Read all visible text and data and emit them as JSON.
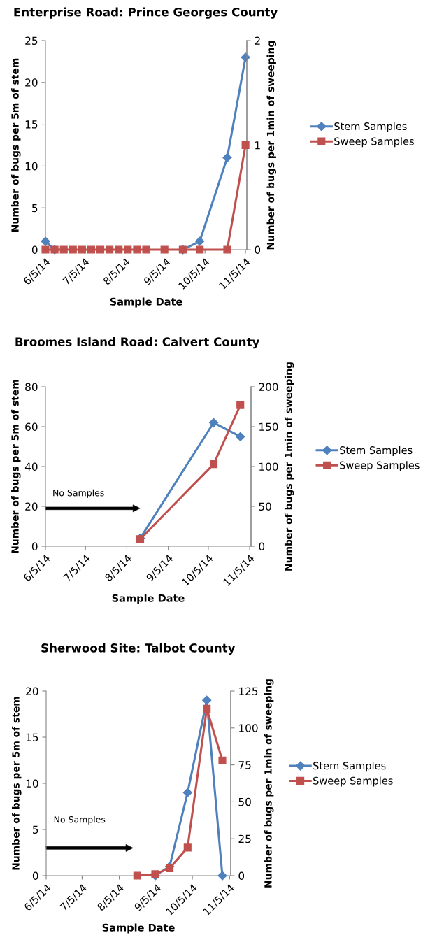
{
  "chart_data": [
    {
      "type": "line",
      "title": "Enterprise Road: Prince Georges County",
      "xlabel": "Sample Date",
      "ylabel": "Number of bugs per 5m of stem",
      "y2label": "Number of bugs per 1min of sweeping",
      "xlim": [
        "2014-06-05",
        "2014-11-06"
      ],
      "xticks": [
        {
          "value": "2014-06-05",
          "label": "6/5/14"
        },
        {
          "value": "2014-07-05",
          "label": "7/5/14"
        },
        {
          "value": "2014-08-05",
          "label": "8/5/14"
        },
        {
          "value": "2014-09-05",
          "label": "9/5/14"
        },
        {
          "value": "2014-10-05",
          "label": "10/5/14"
        },
        {
          "value": "2014-11-05",
          "label": "11/5/14"
        }
      ],
      "ylim": [
        0,
        25
      ],
      "yticks": [
        0,
        5,
        10,
        15,
        20,
        25
      ],
      "y2lim": [
        0,
        2
      ],
      "y2ticks": [
        0,
        1,
        2
      ],
      "grid": false,
      "legend": "right",
      "series": [
        {
          "name": "Stem Samples",
          "color": "#4f81bd",
          "marker": "diamond",
          "x": [
            "2014-06-05",
            "2014-06-12",
            "2014-06-19",
            "2014-06-26",
            "2014-07-03",
            "2014-07-10",
            "2014-07-17",
            "2014-07-24",
            "2014-07-31",
            "2014-08-07",
            "2014-08-14",
            "2014-08-21",
            "2014-09-04",
            "2014-09-18",
            "2014-10-01",
            "2014-10-22",
            "2014-11-05"
          ],
          "values": [
            1,
            0,
            null,
            null,
            null,
            null,
            null,
            null,
            null,
            null,
            null,
            null,
            null,
            0,
            1,
            11,
            23
          ]
        },
        {
          "name": "Sweep Samples",
          "color": "#c0504d",
          "marker": "square",
          "axis": "y2",
          "x": [
            "2014-06-05",
            "2014-06-12",
            "2014-06-19",
            "2014-06-26",
            "2014-07-03",
            "2014-07-10",
            "2014-07-17",
            "2014-07-24",
            "2014-07-31",
            "2014-08-07",
            "2014-08-14",
            "2014-08-21",
            "2014-09-04",
            "2014-09-18",
            "2014-10-01",
            "2014-10-22",
            "2014-11-05"
          ],
          "values": [
            0,
            0,
            0,
            0,
            0,
            0,
            0,
            0,
            0,
            0,
            0,
            0,
            0,
            0,
            0,
            0,
            1
          ]
        }
      ]
    },
    {
      "type": "line",
      "title": "Broomes Island Road: Calvert County",
      "xlabel": "Sample Date",
      "ylabel": "Number of bugs per 5m of stem",
      "y2label": "Number of bugs per 1min of sweeping",
      "xlim": [
        "2014-06-05",
        "2014-11-06"
      ],
      "xticks": [
        {
          "value": "2014-06-05",
          "label": "6/5/14"
        },
        {
          "value": "2014-07-05",
          "label": "7/5/14"
        },
        {
          "value": "2014-08-05",
          "label": "8/5/14"
        },
        {
          "value": "2014-09-05",
          "label": "9/5/14"
        },
        {
          "value": "2014-10-05",
          "label": "10/5/14"
        },
        {
          "value": "2014-11-05",
          "label": "11/5/14"
        }
      ],
      "ylim": [
        0,
        80
      ],
      "yticks": [
        0,
        20,
        40,
        60,
        80
      ],
      "y2lim": [
        0,
        200
      ],
      "y2ticks": [
        0,
        50,
        100,
        150,
        200
      ],
      "grid": false,
      "legend": "right",
      "annotations": [
        "No Samples"
      ],
      "series": [
        {
          "name": "Stem Samples",
          "color": "#4f81bd",
          "marker": "diamond",
          "x": [
            "2014-08-15",
            "2014-10-09",
            "2014-10-29"
          ],
          "values": [
            4,
            62,
            55
          ]
        },
        {
          "name": "Sweep Samples",
          "color": "#c0504d",
          "marker": "square",
          "axis": "y2",
          "x": [
            "2014-08-15",
            "2014-10-09",
            "2014-10-29"
          ],
          "values": [
            9,
            103,
            177
          ]
        }
      ]
    },
    {
      "type": "line",
      "title": "Sherwood Site: Talbot County",
      "xlabel": "Sample Date",
      "ylabel": "Number of bugs per 5m of stem",
      "y2label": "Number of bugs per 1min of sweeping",
      "xlim": [
        "2014-06-05",
        "2014-11-06"
      ],
      "xticks": [
        {
          "value": "2014-06-05",
          "label": "6/5/14"
        },
        {
          "value": "2014-07-05",
          "label": "7/5/14"
        },
        {
          "value": "2014-08-05",
          "label": "8/5/14"
        },
        {
          "value": "2014-09-05",
          "label": "9/5/14"
        },
        {
          "value": "2014-10-05",
          "label": "10/5/14"
        },
        {
          "value": "2014-11-05",
          "label": "11/5/14"
        }
      ],
      "ylim": [
        0,
        20
      ],
      "yticks": [
        0,
        5,
        10,
        15,
        20
      ],
      "y2lim": [
        0,
        125
      ],
      "y2ticks": [
        0,
        25,
        50,
        75,
        100,
        125
      ],
      "grid": false,
      "legend": "right",
      "annotations": [
        "No Samples"
      ],
      "series": [
        {
          "name": "Stem Samples",
          "color": "#4f81bd",
          "marker": "diamond",
          "x": [
            "2014-09-04",
            "2014-09-16",
            "2014-10-01",
            "2014-10-17",
            "2014-10-30"
          ],
          "values": [
            0,
            1,
            9,
            19,
            0
          ]
        },
        {
          "name": "Sweep Samples",
          "color": "#c0504d",
          "marker": "square",
          "axis": "y2",
          "x": [
            "2014-08-20",
            "2014-09-04",
            "2014-09-16",
            "2014-10-01",
            "2014-10-17",
            "2014-10-30"
          ],
          "values": [
            0,
            1,
            5,
            19,
            113,
            78
          ]
        }
      ]
    }
  ]
}
